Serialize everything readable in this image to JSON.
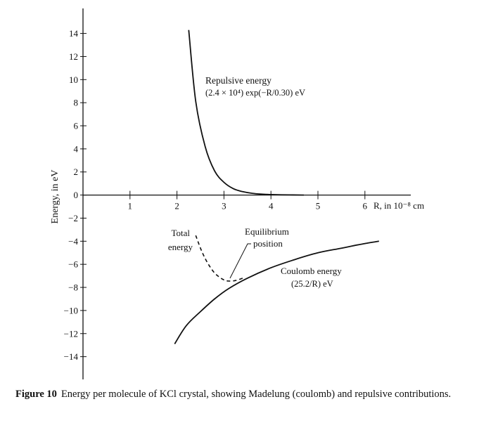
{
  "chart_data": {
    "type": "line",
    "xlabel": "R, in 10⁻⁸ cm",
    "ylabel": "Energy, in eV",
    "xlim": [
      0,
      7
    ],
    "ylim": [
      -16,
      16
    ],
    "x_ticks": [
      1,
      2,
      3,
      4,
      5,
      6
    ],
    "y_ticks": [
      14,
      12,
      10,
      8,
      6,
      4,
      2,
      0,
      -2,
      -4,
      -6,
      -8,
      -10,
      -12,
      -14
    ],
    "grid": false,
    "series": [
      {
        "name": "Repulsive energy",
        "formula": "(2.4 × 10⁴) exp(−R/0.30) eV",
        "style": "solid",
        "x": [
          2.25,
          2.4,
          2.6,
          2.8,
          3.0,
          3.2,
          3.4,
          3.6,
          3.8,
          4.0,
          4.4,
          4.7
        ],
        "y": [
          14.3,
          8.1,
          4.2,
          2.1,
          1.1,
          0.55,
          0.29,
          0.15,
          0.08,
          0.04,
          0.01,
          0.0
        ]
      },
      {
        "name": "Coulomb energy",
        "formula": "(25.2/R) eV",
        "style": "solid",
        "x": [
          1.95,
          2.2,
          2.5,
          2.8,
          3.1,
          3.5,
          4.0,
          4.5,
          5.0,
          5.5,
          6.0,
          6.3
        ],
        "y": [
          -12.9,
          -11.3,
          -10.1,
          -9.0,
          -8.1,
          -7.2,
          -6.3,
          -5.6,
          -5.0,
          -4.6,
          -4.2,
          -4.0
        ]
      },
      {
        "name": "Total energy",
        "style": "dashed",
        "x": [
          2.4,
          2.5,
          2.6,
          2.7,
          2.8,
          2.9,
          3.0,
          3.1,
          3.25,
          3.4
        ],
        "y": [
          -3.5,
          -4.6,
          -5.5,
          -6.2,
          -6.75,
          -7.1,
          -7.35,
          -7.45,
          -7.4,
          -7.2
        ]
      }
    ],
    "annotations": [
      {
        "id": "repulsive",
        "lines": [
          "Repulsive energy",
          "(2.4 × 10⁴) exp(−R/0.30) eV"
        ]
      },
      {
        "id": "total",
        "lines": [
          "Total",
          "energy"
        ]
      },
      {
        "id": "equilibrium",
        "lines": [
          "Equilibrium",
          "position"
        ]
      },
      {
        "id": "coulomb",
        "lines": [
          "Coulomb energy",
          "(25.2/R) eV"
        ]
      }
    ]
  },
  "caption": {
    "label": "Figure 10",
    "text": "Energy per molecule of KCl crystal, showing Madelung (coulomb) and repulsive contributions."
  }
}
